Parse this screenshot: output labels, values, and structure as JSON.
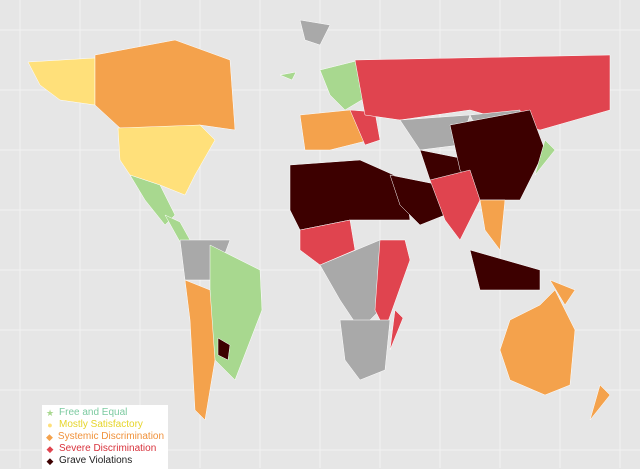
{
  "legend": {
    "items": [
      {
        "label": "Free and Equal",
        "marker": "star",
        "color": "#a8d88f",
        "text_color": "#7ccaa0"
      },
      {
        "label": "Mostly Satisfactory",
        "marker": "circle",
        "color": "#ffe07a",
        "text_color": "#e6d52a"
      },
      {
        "label": "Systemic Discrimination",
        "marker": "diamond",
        "color": "#f4a24c",
        "text_color": "#f0913a"
      },
      {
        "label": "Severe Discrimination",
        "marker": "diamond",
        "color": "#e0444f",
        "text_color": "#d8323c"
      },
      {
        "label": "Grave Violations",
        "marker": "diamond",
        "color": "#3d0000",
        "text_color": "#222222"
      }
    ]
  },
  "colors": {
    "background": "#e6e6e6",
    "no_data": "#a9a9a9"
  }
}
